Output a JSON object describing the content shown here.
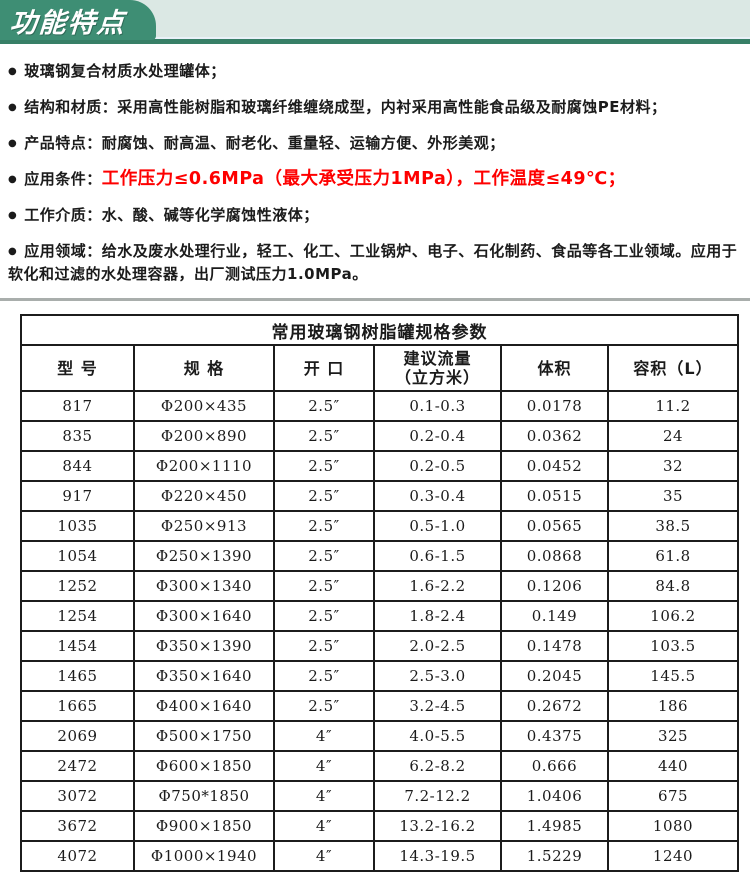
{
  "colors": {
    "tab_green": "#3e8e74",
    "strip_bg": "#dbe8e4",
    "rule_green": "#377f67",
    "highlight_red": "#fe0000",
    "table_border": "#1c1c1c"
  },
  "header": {
    "tab_title": "功能特点"
  },
  "features": {
    "bullet_char": "●",
    "items": [
      {
        "text": "玻璃钢复合材质水处理罐体；"
      },
      {
        "text": "结构和材质：采用高性能树脂和玻璃纤维缠绕成型，内衬采用高性能食品级及耐腐蚀PE材料；"
      },
      {
        "text": "产品特点：耐腐蚀、耐高温、耐老化、重量轻、运输方便、外形美观；"
      },
      {
        "text": "应用条件：",
        "highlight": "工作压力≤0.6MPa（最大承受压力1MPa），工作温度≤49℃；"
      },
      {
        "text": "工作介质：水、酸、碱等化学腐蚀性液体；"
      },
      {
        "text": "应用领域：给水及废水处理行业，轻工、化工、工业锅炉、电子、石化制药、食品等各工业领域。应用于软化和过滤的水处理容器，出厂测试压力1.0MPa。"
      }
    ]
  },
  "table": {
    "title": "常用玻璃钢树脂罐规格参数",
    "columns": [
      "型 号",
      "规 格",
      "开 口",
      "建议流量\n（立方米）",
      "体积",
      "容积（L）"
    ],
    "rows": [
      [
        "817",
        "Φ200×435",
        "2.5″",
        "0.1-0.3",
        "0.0178",
        "11.2"
      ],
      [
        "835",
        "Φ200×890",
        "2.5″",
        "0.2-0.4",
        "0.0362",
        "24"
      ],
      [
        "844",
        "Φ200×1110",
        "2.5″",
        "0.2-0.5",
        "0.0452",
        "32"
      ],
      [
        "917",
        "Φ220×450",
        "2.5″",
        "0.3-0.4",
        "0.0515",
        "35"
      ],
      [
        "1035",
        "Φ250×913",
        "2.5″",
        "0.5-1.0",
        "0.0565",
        "38.5"
      ],
      [
        "1054",
        "Φ250×1390",
        "2.5″",
        "0.6-1.5",
        "0.0868",
        "61.8"
      ],
      [
        "1252",
        "Φ300×1340",
        "2.5″",
        "1.6-2.2",
        "0.1206",
        "84.8"
      ],
      [
        "1254",
        "Φ300×1640",
        "2.5″",
        "1.8-2.4",
        "0.149",
        "106.2"
      ],
      [
        "1454",
        "Φ350×1390",
        "2.5″",
        "2.0-2.5",
        "0.1478",
        "103.5"
      ],
      [
        "1465",
        "Φ350×1640",
        "2.5″",
        "2.5-3.0",
        "0.2045",
        "145.5"
      ],
      [
        "1665",
        "Φ400×1640",
        "2.5″",
        "3.2-4.5",
        "0.2672",
        "186"
      ],
      [
        "2069",
        "Φ500×1750",
        "4″",
        "4.0-5.5",
        "0.4375",
        "325"
      ],
      [
        "2472",
        "Φ600×1850",
        "4″",
        "6.2-8.2",
        "0.666",
        "440"
      ],
      [
        "3072",
        "Φ750*1850",
        "4″",
        "7.2-12.2",
        "1.0406",
        "675"
      ],
      [
        "3672",
        "Φ900×1850",
        "4″",
        "13.2-16.2",
        "1.4985",
        "1080"
      ],
      [
        "4072",
        "Φ1000×1940",
        "4″",
        "14.3-19.5",
        "1.5229",
        "1240"
      ]
    ]
  }
}
